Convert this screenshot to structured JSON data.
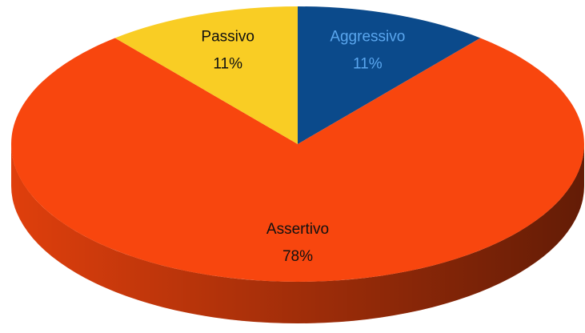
{
  "chart_data": {
    "type": "pie",
    "categories": [
      "Aggressivo",
      "Assertivo",
      "Passivo"
    ],
    "values": [
      11,
      78,
      11
    ],
    "value_labels": [
      "11%",
      "78%",
      "11%"
    ],
    "colors": [
      "#0b4a8b",
      "#f8460e",
      "#f9cd24"
    ]
  }
}
